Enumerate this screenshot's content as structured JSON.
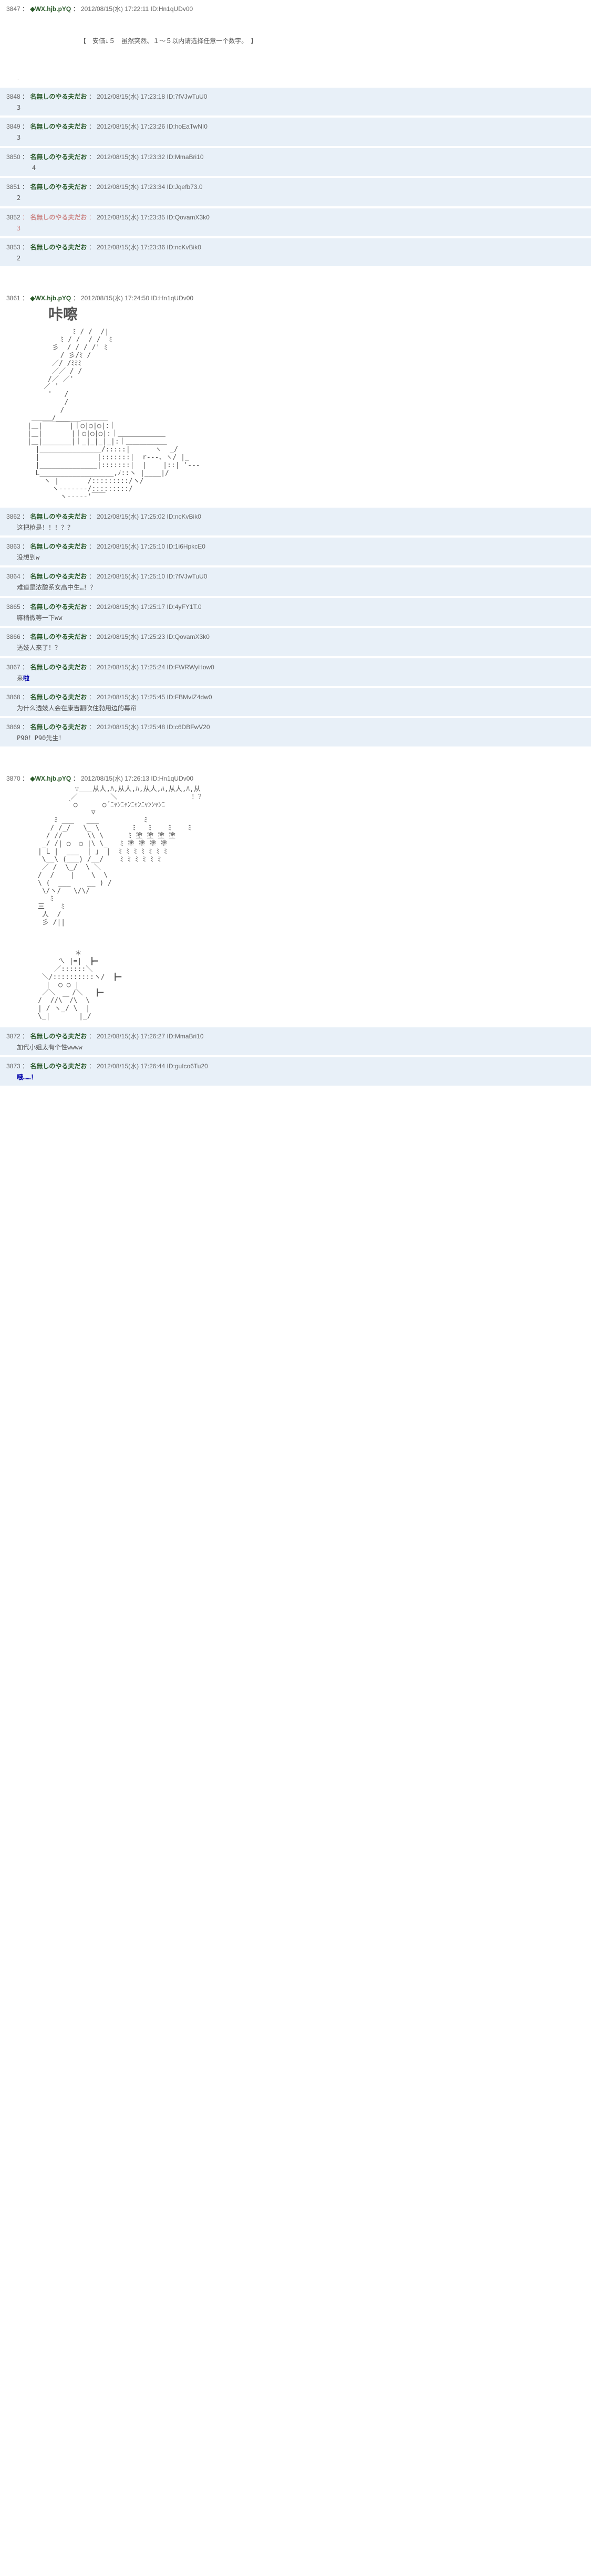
{
  "posts": [
    {
      "num": "3847",
      "name": "◆WX.hjb.pYQ",
      "date": "2012/08/15(水) 17:22:11",
      "id": "ID:Hn1qUDv00",
      "body": "",
      "reply": false,
      "special": "choice"
    },
    {
      "num": "3848",
      "name": "名無しのやる夫だお",
      "date": "2012/08/15(水) 17:23:18",
      "id": "ID:7fVJwTuU0",
      "body": "3",
      "reply": true
    },
    {
      "num": "3849",
      "name": "名無しのやる夫だお",
      "date": "2012/08/15(水) 17:23:26",
      "id": "ID:hoEaTwNI0",
      "body": "3",
      "reply": true
    },
    {
      "num": "3850",
      "name": "名無しのやる夫だお",
      "date": "2012/08/15(水) 17:23:32",
      "id": "ID:MmaBri10",
      "body": "    4",
      "reply": true
    },
    {
      "num": "3851",
      "name": "名無しのやる夫だお",
      "date": "2012/08/15(水) 17:23:34",
      "id": "ID:Jqefb73.0",
      "body": "2",
      "reply": true
    },
    {
      "num": "3852",
      "name": "名無しのやる夫だお",
      "date": "2012/08/15(水) 17:23:35",
      "id": "ID:QovamX3k0",
      "body": "3",
      "reply": true,
      "deleted": true
    },
    {
      "num": "3853",
      "name": "名無しのやる夫だお",
      "date": "2012/08/15(水) 17:23:36",
      "id": "ID:ncKvBik0",
      "body": "2",
      "reply": true
    },
    {
      "num": "3861",
      "name": "◆WX.hjb.pYQ",
      "date": "2012/08/15(水) 17:24:50",
      "id": "ID:Hn1qUDv00",
      "body": "",
      "reply": false,
      "special": "aa1"
    },
    {
      "num": "3862",
      "name": "名無しのやる夫だお",
      "date": "2012/08/15(水) 17:25:02",
      "id": "ID:ncKvBik0",
      "body": "这把枪是！！！？？",
      "reply": true
    },
    {
      "num": "3863",
      "name": "名無しのやる夫だお",
      "date": "2012/08/15(水) 17:25:10",
      "id": "ID:1i6HpkcE0",
      "body": "没想到w",
      "reply": true
    },
    {
      "num": "3864",
      "name": "名無しのやる夫だお",
      "date": "2012/08/15(水) 17:25:10",
      "id": "ID:7fVJwTuU0",
      "body": "难道是浓酸系女高中生…！？",
      "reply": true
    },
    {
      "num": "3865",
      "name": "名無しのやる夫だお",
      "date": "2012/08/15(水) 17:25:17",
      "id": "ID:4yFY1T.0",
      "body": "嘛稍微等一下ww",
      "reply": true
    },
    {
      "num": "3866",
      "name": "名無しのやる夫だお",
      "date": "2012/08/15(水) 17:25:23",
      "id": "ID:QovamX3k0",
      "body": "透妓人来了！？",
      "reply": true
    },
    {
      "num": "3867",
      "name": "名無しのやる夫だお",
      "date": "2012/08/15(水) 17:25:24",
      "id": "ID:FWRWyHow0",
      "body": "来",
      "reply": true,
      "highlight": "啦"
    },
    {
      "num": "3868",
      "name": "名無しのやる夫だお",
      "date": "2012/08/15(水) 17:25:45",
      "id": "ID:FBMvIZ4dw0",
      "body": "为什么透妓人会在康吉翻吹住勃用边的幕帘",
      "reply": true
    },
    {
      "num": "3869",
      "name": "名無しのやる夫だお",
      "date": "2012/08/15(水) 17:25:48",
      "id": "ID:c6DBFwV20",
      "body": "P90！P90先生！",
      "reply": true
    },
    {
      "num": "3870",
      "name": "◆WX.hjb.pYQ",
      "date": "2012/08/15(水) 17:26:13",
      "id": "ID:Hn1qUDv00",
      "body": "",
      "reply": false,
      "special": "aa2"
    },
    {
      "num": "3872",
      "name": "名無しのやる夫だお",
      "date": "2012/08/15(水) 17:26:27",
      "id": "ID:MmaBri10",
      "body": "加代小姐太有个性wwww",
      "reply": true
    },
    {
      "num": "3873",
      "name": "名無しのやる夫だお",
      "date": "2012/08/15(水) 17:26:44",
      "id": "ID:guIco6Tu20",
      "body": "",
      "reply": true,
      "highlight": "哦……！"
    }
  ],
  "choice_text": "【　安価↓５　虽然突然、１～５以内请选择任意一个数字。　】",
  "aa1_title": "咔嚓",
  "aa1": "           ﾐ / /  /|\n        ﾐ / /  / /  ﾐ\n      彡  / / / /' ﾐ\n        / 彡/ﾐ /\n      ／/ /ﾐﾐﾐ\n      ／／ / /\n     /／ ／'\n    ／ '\n     '   /\n         /\n        /\n ＿＿＿/______＿＿＿＿\n|＿|￣￣￣￣|｜○|○|○|:｜\n|＿|       |｜○|○|○|:｜＿＿＿＿＿＿＿\n|＿|_______|｜_|_|_|_|:｜＿＿＿＿＿＿\n  |_______________/:::::|      ヽ  _/\n  |              |:::::::|  r---、ヽ/ |_\n  |______________|:::::::|  |    |::| '---\n  L__________________,ﾉ::ヽ |____|/\n    ヽ |       /:::::::::/ヽ/\n      ヽ-------/:::::::::/\n        ヽ-----'￣￣\n",
  "aa2": "         ∵＿＿从人,ﾊ,从人,ﾊ,从人,ﾊ,从人,ﾊ,从\n        ／        ＼                  ！？\n       ｀○      ○´ﾆｬﾝﾆｬﾝﾆｬﾝﾆｬﾝﾝｬﾝﾆ\n             ▽\n    ﾐ ___   ___           ﾐ\n   / /_/   \\_ \\        ﾐ   ﾐ    ﾐ    ﾐ\n  / //      \\\\ \\      ﾐ 塗 塗 塗 塗\n _/ /| ○  ○ |\\ \\_   ﾐ 塗 塗 塗 塗\n| L |  ___  | 」 |  ﾐ ﾐ ﾐ ﾐ ﾐ ﾐ ﾐ\n \\__\\ (___) /__/    ﾐ ﾐ ﾐ ﾐ ﾐ ﾐ\n ／ /  \\_/  \\ ＼\n/  /    |    \\  \\\n\\ (  ___    __ ) /\n \\/ヽ/   \\/\\/\n   ﾐ\n三    ﾐ\n 人  /\n 彡 /||\n\n\n\n         ＊\n     ㄟ |=|  ┣━\n    ／::::::＼ \n ＼/::::::::::ヽ/  ┣━\n  |  ○ ○ |    \n ／＼    /＼   ┣━\n/  //\\￣/\\  \\\n| / ヽ_/ \\  |\n\\_|       |_/\n"
}
